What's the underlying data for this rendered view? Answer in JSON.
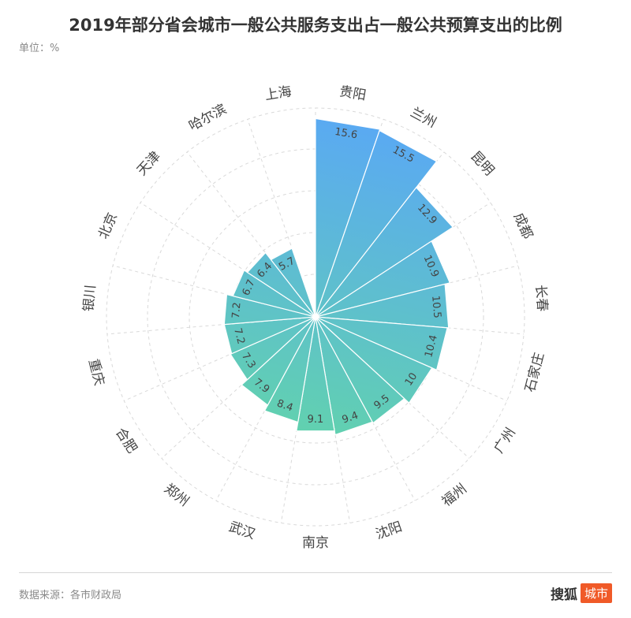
{
  "title": "2019年部分省会城市一般公共服务支出占一般公共预算支出的比例",
  "unit_label": "单位：%",
  "footer": {
    "source": "数据来源：各市财政局",
    "brand_text": "搜狐",
    "brand_badge": "城市"
  },
  "colors": {
    "start": "#5aa9f3",
    "end": "#62d4aa",
    "grid": "#d9d9d9"
  },
  "chart_data": {
    "type": "bar",
    "polar": true,
    "categories": [
      "贵阳",
      "兰州",
      "昆明",
      "成都",
      "长春",
      "石家庄",
      "广州",
      "福州",
      "沈阳",
      "南京",
      "武汉",
      "郑州",
      "合肥",
      "重庆",
      "银川",
      "北京",
      "天津",
      "哈尔滨",
      "上海"
    ],
    "values": [
      15.6,
      15.5,
      12.9,
      10.9,
      10.5,
      10.4,
      10,
      9.5,
      9.4,
      9.1,
      8.4,
      7.9,
      7.3,
      7.2,
      7.2,
      6.7,
      6.4,
      5.7,
      null
    ],
    "display_labels": [
      "15.6",
      "15.5",
      "12.9",
      "10.9",
      "10.5",
      "10.4",
      "10",
      "9.5",
      "9.4",
      "9.1",
      "8.4",
      "7.9",
      "7.3",
      "7.2",
      "7.2",
      "6.7",
      "6.4",
      "5.7",
      ""
    ],
    "rmax": 16,
    "grid": true
  }
}
